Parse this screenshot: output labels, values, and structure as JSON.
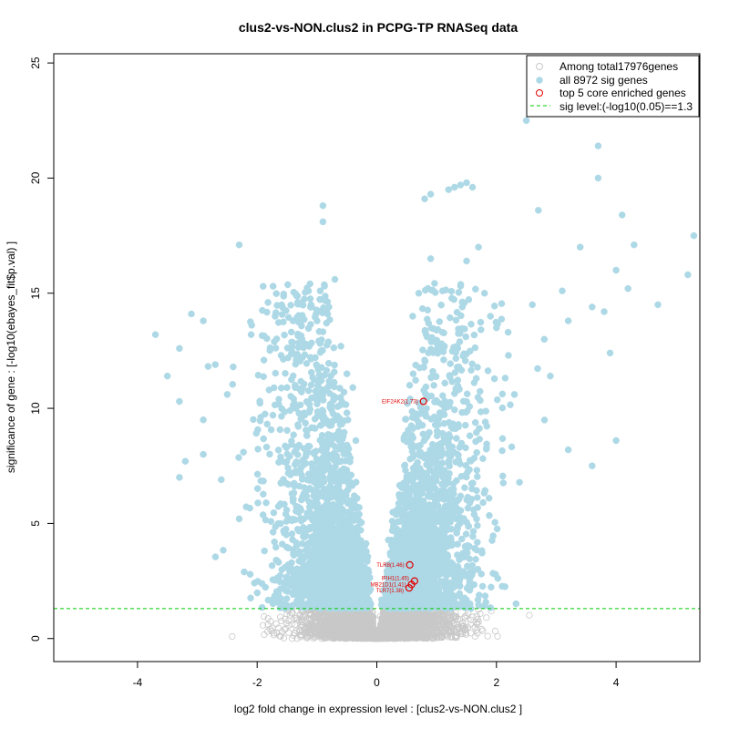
{
  "chart_data": {
    "type": "scatter",
    "title": "clus2-vs-NON.clus2 in PCPG-TP RNASeq data",
    "xlabel": "log2 fold change in expression level : [clus2-vs-NON.clus2 ]",
    "ylabel": "significance of gene : [-log10(ebayes_fit$p.val) ]",
    "xlim": [
      -5.4,
      5.4
    ],
    "ylim": [
      -1.0,
      25.4
    ],
    "xticks": [
      -4,
      -2,
      0,
      2,
      4
    ],
    "yticks": [
      0,
      5,
      10,
      15,
      20,
      25
    ],
    "sig_level": 1.3,
    "legend": {
      "position": "top-right",
      "entries": [
        {
          "label": "Among total17976genes",
          "symbol": "open-circle",
          "color": "#c8c8c8"
        },
        {
          "label": "all 8972 sig genes",
          "symbol": "filled-circle",
          "color": "#add8e6"
        },
        {
          "label": "top 5 core enriched genes",
          "symbol": "open-circle",
          "color": "#e00000"
        },
        {
          "label": "sig level:(-log10(0.05)==1.3",
          "symbol": "dashed-line",
          "color": "#00cc00"
        }
      ]
    },
    "colors": {
      "nonsig": "#c8c8c8",
      "sig": "#add8e6",
      "highlight": "#e00000",
      "threshold": "#00cc00"
    },
    "sig_points_sample": [
      [
        -3.7,
        13.2
      ],
      [
        -3.5,
        11.4
      ],
      [
        -3.3,
        12.6
      ],
      [
        -3.3,
        10.3
      ],
      [
        -3.3,
        7.0
      ],
      [
        -3.2,
        7.7
      ],
      [
        -3.1,
        14.1
      ],
      [
        -2.9,
        13.8
      ],
      [
        -2.9,
        9.5
      ],
      [
        -2.9,
        8.0
      ],
      [
        -2.7,
        11.9
      ],
      [
        -2.6,
        6.9
      ],
      [
        -2.5,
        10.6
      ],
      [
        -2.4,
        11.8
      ],
      [
        -2.3,
        17.1
      ],
      [
        -2.3,
        5.2
      ],
      [
        -2.1,
        13.2
      ],
      [
        -1.9,
        15.3
      ],
      [
        -1.8,
        10.8
      ],
      [
        -1.7,
        14.0
      ],
      [
        -1.6,
        12.3
      ],
      [
        -1.5,
        10.9
      ],
      [
        -1.4,
        13.8
      ],
      [
        -1.3,
        8.4
      ],
      [
        -1.2,
        12.8
      ],
      [
        -1.1,
        14.5
      ],
      [
        -1.0,
        13.8
      ],
      [
        -0.9,
        18.1
      ],
      [
        -0.9,
        18.8
      ],
      [
        -0.8,
        14.4
      ],
      [
        -0.7,
        15.6
      ],
      [
        -0.6,
        12.7
      ],
      [
        -0.5,
        11.5
      ],
      [
        -0.5,
        9.8
      ],
      [
        -0.4,
        10.9
      ],
      [
        -0.35,
        8.6
      ],
      [
        0.55,
        11.0
      ],
      [
        0.6,
        14.0
      ],
      [
        0.7,
        15.0
      ],
      [
        0.8,
        19.1
      ],
      [
        0.9,
        19.3
      ],
      [
        0.9,
        16.5
      ],
      [
        1.1,
        15.1
      ],
      [
        1.2,
        19.5
      ],
      [
        1.3,
        19.6
      ],
      [
        1.4,
        19.7
      ],
      [
        1.5,
        19.8
      ],
      [
        1.6,
        19.6
      ],
      [
        1.5,
        16.4
      ],
      [
        1.7,
        17.0
      ],
      [
        1.8,
        15.0
      ],
      [
        1.9,
        14.0
      ],
      [
        2.0,
        13.5
      ],
      [
        2.2,
        12.3
      ],
      [
        2.3,
        10.6
      ],
      [
        2.5,
        22.5
      ],
      [
        2.6,
        14.5
      ],
      [
        2.7,
        18.6
      ],
      [
        2.8,
        13.0
      ],
      [
        2.9,
        11.4
      ],
      [
        3.1,
        15.1
      ],
      [
        3.2,
        13.8
      ],
      [
        3.4,
        17.0
      ],
      [
        3.6,
        14.4
      ],
      [
        3.7,
        21.4
      ],
      [
        3.7,
        20.0
      ],
      [
        3.8,
        14.2
      ],
      [
        3.9,
        12.4
      ],
      [
        4.0,
        8.6
      ],
      [
        4.0,
        16.0
      ],
      [
        4.1,
        18.4
      ],
      [
        4.2,
        15.2
      ],
      [
        4.3,
        17.1
      ],
      [
        4.7,
        14.5
      ],
      [
        5.2,
        15.8
      ],
      [
        5.3,
        17.5
      ],
      [
        3.6,
        7.5
      ],
      [
        3.2,
        8.2
      ]
    ],
    "highlight_genes": [
      {
        "label": "EIF2AK2(1.73)",
        "x": 0.78,
        "y": 10.3
      },
      {
        "label": "TLR8(1.46)",
        "x": 0.55,
        "y": 3.2
      },
      {
        "label": "IFIH1(1.45)",
        "x": 0.63,
        "y": 2.5
      },
      {
        "label": "MB21D1(1.41)",
        "x": 0.58,
        "y": 2.35
      },
      {
        "label": "TLR7(1.38)",
        "x": 0.54,
        "y": 2.2
      }
    ]
  }
}
